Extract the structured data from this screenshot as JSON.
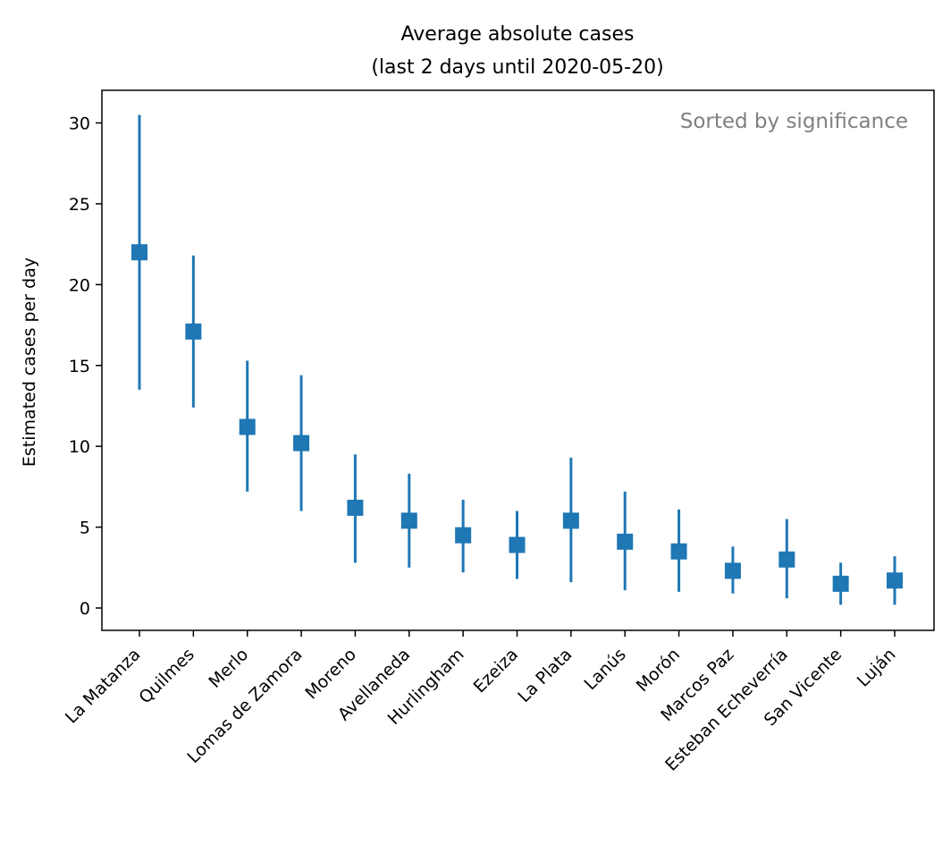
{
  "chart_data": {
    "type": "scatter",
    "title": "Average absolute cases",
    "subtitle": "(last 2 days until 2020-05-20)",
    "xlabel": "",
    "ylabel": "Estimated cases per day",
    "annotation": "Sorted by significance",
    "annotation_color": "#808080",
    "marker": "square-with-errorbars",
    "marker_color": "#1f77b4",
    "ylim": [
      -1.3,
      32
    ],
    "yticks": [
      0,
      5,
      10,
      15,
      20,
      25,
      30
    ],
    "grid": false,
    "categories": [
      "La Matanza",
      "Quilmes",
      "Merlo",
      "Lomas de Zamora",
      "Moreno",
      "Avellaneda",
      "Hurlingham",
      "Ezeiza",
      "La Plata",
      "Lanús",
      "Morón",
      "Marcos Paz",
      "Esteban Echeverría",
      "San Vicente",
      "Luján"
    ],
    "values": [
      22.0,
      17.1,
      11.2,
      10.2,
      6.2,
      5.4,
      4.5,
      3.9,
      5.4,
      4.1,
      3.5,
      2.3,
      3.0,
      1.5,
      1.7
    ],
    "lower": [
      13.5,
      12.4,
      7.2,
      6.0,
      2.8,
      2.5,
      2.2,
      1.8,
      1.6,
      1.1,
      1.0,
      0.9,
      0.6,
      0.2,
      0.2
    ],
    "upper": [
      30.5,
      21.8,
      15.3,
      14.4,
      9.5,
      8.3,
      6.7,
      6.0,
      9.3,
      7.2,
      6.1,
      3.8,
      5.5,
      2.8,
      3.2
    ]
  }
}
